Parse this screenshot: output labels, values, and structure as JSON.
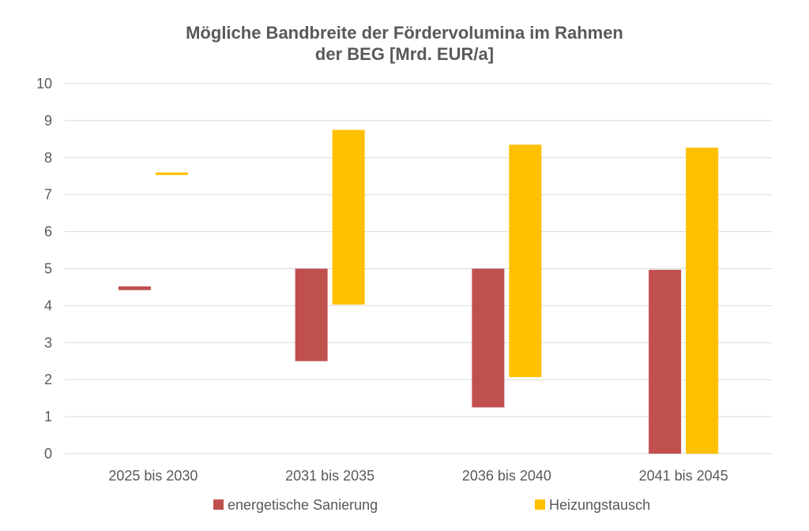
{
  "chart_data": {
    "type": "bar",
    "title": [
      "Mögliche Bandbreite der Fördervolumina im Rahmen",
      "der BEG [Mrd. EUR/a]"
    ],
    "categories": [
      "2025 bis 2030",
      "2031 bis 2035",
      "2036 bis 2040",
      "2041 bis 2045"
    ],
    "series": [
      {
        "name": "energetische Sanierung",
        "color": "#C0504D",
        "ranges": [
          [
            4.42,
            4.52
          ],
          [
            2.5,
            5.0
          ],
          [
            1.25,
            5.0
          ],
          [
            0.0,
            4.97
          ]
        ]
      },
      {
        "name": "Heizungstausch",
        "color": "#FFC000",
        "ranges": [
          [
            7.53,
            7.6
          ],
          [
            4.03,
            8.75
          ],
          [
            2.07,
            8.35
          ],
          [
            0.0,
            8.27
          ]
        ]
      }
    ],
    "ylim": [
      0,
      10
    ],
    "yticks": [
      "0",
      "1",
      "2",
      "3",
      "4",
      "5",
      "6",
      "7",
      "8",
      "9",
      "10"
    ],
    "grid": true,
    "legend_position": "bottom"
  }
}
